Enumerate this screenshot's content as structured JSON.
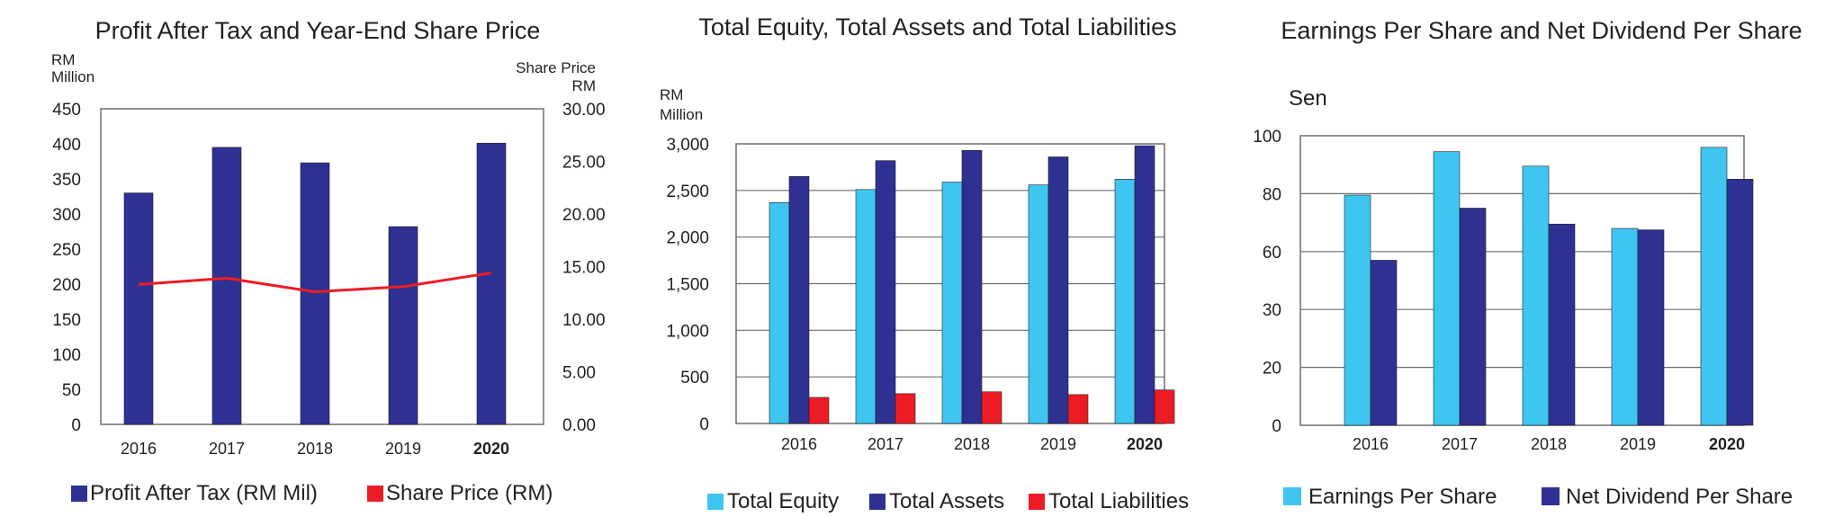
{
  "chart_data": [
    {
      "type": "bar",
      "title": "Profit After Tax and Year-End Share Price",
      "left_unit": [
        "RM",
        "Million"
      ],
      "right_unit": [
        "Share Price",
        "RM"
      ],
      "categories": [
        "2016",
        "2017",
        "2018",
        "2019",
        "2020"
      ],
      "bold_category": "2020",
      "ylim": [
        0,
        450
      ],
      "yticks": [
        "0",
        "50",
        "100",
        "150",
        "200",
        "250",
        "300",
        "350",
        "400",
        "450"
      ],
      "y2lim": [
        0,
        30
      ],
      "y2ticks": [
        "0.00",
        "5.00",
        "10.00",
        "15.00",
        "20.00",
        "25.00",
        "30.00"
      ],
      "grid": false,
      "legend_position": "bottom",
      "series": [
        {
          "name": "Profit After Tax (RM Mil)",
          "kind": "bar",
          "axis": "left",
          "color": "#2e3192",
          "values": [
            330,
            395,
            373,
            282,
            401
          ]
        },
        {
          "name": "Share Price (RM)",
          "kind": "line",
          "axis": "right",
          "color": "#ed1c24",
          "values": [
            13.3,
            13.9,
            12.6,
            13.1,
            14.4
          ]
        }
      ]
    },
    {
      "type": "bar",
      "title": "Total Equity, Total Assets and Total Liabilities",
      "left_unit": [
        "RM",
        "Million"
      ],
      "categories": [
        "2016",
        "2017",
        "2018",
        "2019",
        "2020"
      ],
      "bold_category": "2020",
      "ylim": [
        0,
        3000
      ],
      "yticks": [
        "0",
        "500",
        "1,000",
        "1,500",
        "2,000",
        "2,500",
        "3,000"
      ],
      "grid": true,
      "legend_position": "bottom",
      "series": [
        {
          "name": "Total Equity",
          "color": "#3ec6f0",
          "values": [
            2370,
            2510,
            2590,
            2560,
            2620
          ]
        },
        {
          "name": "Total Assets",
          "color": "#2e3192",
          "values": [
            2650,
            2820,
            2930,
            2860,
            2980
          ]
        },
        {
          "name": "Total Liabilities",
          "color": "#ed1c24",
          "values": [
            280,
            320,
            340,
            310,
            360
          ]
        }
      ]
    },
    {
      "type": "bar",
      "title": "Earnings Per Share and Net Dividend Per Share",
      "left_unit": [
        "Sen"
      ],
      "categories": [
        "2016",
        "2017",
        "2018",
        "2019",
        "2020"
      ],
      "bold_category": "2020",
      "ylim": [
        0,
        100
      ],
      "yticks": [
        "0",
        "20",
        "30",
        "60",
        "80",
        "100"
      ],
      "grid": true,
      "legend_position": "bottom",
      "series": [
        {
          "name": "Earnings Per Share",
          "color": "#3ec6f0",
          "values": [
            79.5,
            94.5,
            89.5,
            68,
            null
          ]
        },
        {
          "name": "Net Dividend Per Share",
          "color": "#2e3192",
          "values": [
            57,
            75,
            69.5,
            67.5,
            85
          ]
        }
      ]
    }
  ]
}
